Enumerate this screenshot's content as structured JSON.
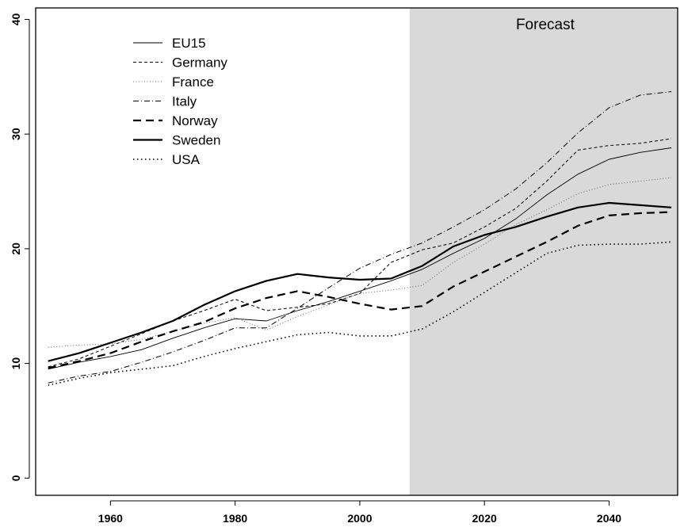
{
  "chart_data": {
    "type": "line",
    "title": "",
    "xlabel": "",
    "ylabel": "",
    "xlim": [
      1948,
      2051
    ],
    "ylim": [
      -1.5,
      41
    ],
    "x_ticks": [
      1960,
      1980,
      2000,
      2020,
      2040
    ],
    "y_ticks": [
      0,
      10,
      20,
      30,
      40
    ],
    "grid": false,
    "legend_position": "top-left",
    "annotation": {
      "text": "Forecast",
      "region_x": [
        2008,
        2051
      ],
      "region_color": "#d9d9d9"
    },
    "x": [
      1950,
      1955,
      1960,
      1965,
      1970,
      1975,
      1980,
      1985,
      1990,
      1995,
      2000,
      2005,
      2010,
      2015,
      2020,
      2025,
      2030,
      2035,
      2040,
      2045,
      2050
    ],
    "series": [
      {
        "name": "EU15",
        "style": "thin-solid",
        "values": [
          9.5,
          10.1,
          10.6,
          11.2,
          12.2,
          13.1,
          13.9,
          13.7,
          14.6,
          15.4,
          16.3,
          17.2,
          18.2,
          19.6,
          20.9,
          22.6,
          24.7,
          26.5,
          27.8,
          28.4,
          28.8
        ]
      },
      {
        "name": "Germany",
        "style": "dashed",
        "values": [
          9.7,
          10.4,
          11.5,
          12.6,
          13.7,
          14.6,
          15.6,
          14.6,
          14.9,
          15.2,
          16.1,
          18.8,
          19.9,
          20.5,
          21.9,
          23.5,
          25.9,
          28.6,
          29.0,
          29.2,
          29.6
        ]
      },
      {
        "name": "France",
        "style": "dotted-light",
        "values": [
          11.4,
          11.6,
          11.7,
          12.1,
          12.8,
          13.5,
          14.0,
          12.9,
          14.1,
          15.1,
          16.1,
          16.4,
          16.8,
          18.8,
          20.4,
          22.1,
          23.4,
          24.8,
          25.6,
          25.9,
          26.2
        ]
      },
      {
        "name": "Italy",
        "style": "dash-dot",
        "values": [
          8.3,
          8.9,
          9.3,
          10.1,
          11.0,
          12.0,
          13.1,
          13.1,
          14.8,
          16.6,
          18.3,
          19.5,
          20.5,
          21.9,
          23.4,
          25.2,
          27.5,
          30.1,
          32.3,
          33.4,
          33.7
        ]
      },
      {
        "name": "Norway",
        "style": "heavy-dashed",
        "values": [
          9.6,
          10.2,
          10.9,
          11.9,
          12.8,
          13.6,
          14.8,
          15.7,
          16.3,
          15.8,
          15.2,
          14.7,
          15.0,
          16.7,
          18.0,
          19.3,
          20.6,
          22.0,
          22.9,
          23.1,
          23.2
        ]
      },
      {
        "name": "Sweden",
        "style": "heavy-solid",
        "values": [
          10.2,
          10.9,
          11.8,
          12.7,
          13.7,
          15.1,
          16.3,
          17.2,
          17.8,
          17.5,
          17.3,
          17.4,
          18.5,
          20.2,
          21.2,
          21.9,
          22.8,
          23.6,
          24.0,
          23.8,
          23.6
        ]
      },
      {
        "name": "USA",
        "style": "dotted",
        "values": [
          8.1,
          8.7,
          9.2,
          9.5,
          9.8,
          10.6,
          11.3,
          11.9,
          12.5,
          12.7,
          12.4,
          12.4,
          13.0,
          14.5,
          16.2,
          17.9,
          19.6,
          20.3,
          20.4,
          20.4,
          20.6
        ]
      }
    ]
  },
  "legend_title": ""
}
